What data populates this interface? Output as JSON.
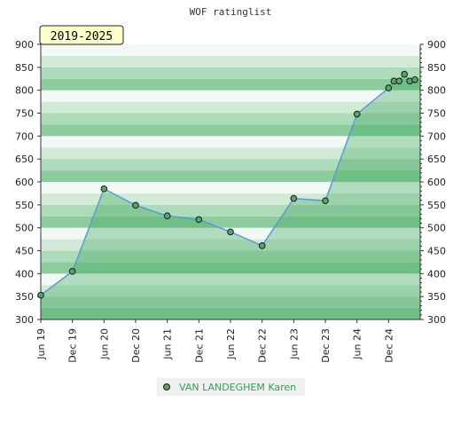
{
  "chart_data": {
    "type": "line",
    "title": "WOF ratinglist",
    "period_badge": "2019-2025",
    "ylim": [
      300,
      900
    ],
    "yticks": [
      300,
      350,
      400,
      450,
      500,
      550,
      600,
      650,
      700,
      750,
      800,
      850,
      900
    ],
    "xlim": [
      0,
      12.0
    ],
    "xticks": [
      {
        "label": "Jun 19",
        "x": 0
      },
      {
        "label": "Dec 19",
        "x": 1
      },
      {
        "label": "Jun 20",
        "x": 2
      },
      {
        "label": "Dec 20",
        "x": 3
      },
      {
        "label": "Jun 21",
        "x": 4
      },
      {
        "label": "Dec 21",
        "x": 5
      },
      {
        "label": "Jun 22",
        "x": 6
      },
      {
        "label": "Dec 22",
        "x": 7
      },
      {
        "label": "Jun 23",
        "x": 8
      },
      {
        "label": "Dec 23",
        "x": 9
      },
      {
        "label": "Jun 24",
        "x": 10
      },
      {
        "label": "Dec 24",
        "x": 11
      }
    ],
    "series": [
      {
        "name": "VAN LANDEGHEM Karen",
        "points": [
          {
            "x": 0,
            "y": 353
          },
          {
            "x": 1,
            "y": 405
          },
          {
            "x": 2,
            "y": 585
          },
          {
            "x": 3,
            "y": 549
          },
          {
            "x": 4,
            "y": 526
          },
          {
            "x": 5,
            "y": 518
          },
          {
            "x": 6,
            "y": 491
          },
          {
            "x": 7,
            "y": 461
          },
          {
            "x": 8,
            "y": 564
          },
          {
            "x": 9,
            "y": 559
          },
          {
            "x": 10,
            "y": 748
          },
          {
            "x": 11,
            "y": 805
          },
          {
            "x": 11.17,
            "y": 820
          },
          {
            "x": 11.33,
            "y": 820
          },
          {
            "x": 11.5,
            "y": 835
          },
          {
            "x": 11.67,
            "y": 820
          },
          {
            "x": 11.83,
            "y": 823
          }
        ]
      }
    ],
    "colors": {
      "line": "#5b9bd5",
      "marker_fill": "#5aa36a",
      "marker_stroke": "#1a1a1a",
      "area": "#3aa35a",
      "band_light": "#f2f9f4",
      "band_dark": "#8ccc9d",
      "badge_bg": "#ffffcc",
      "legend_text": "#3a9a5a"
    },
    "grid": true,
    "legend_position": "bottom-center"
  }
}
